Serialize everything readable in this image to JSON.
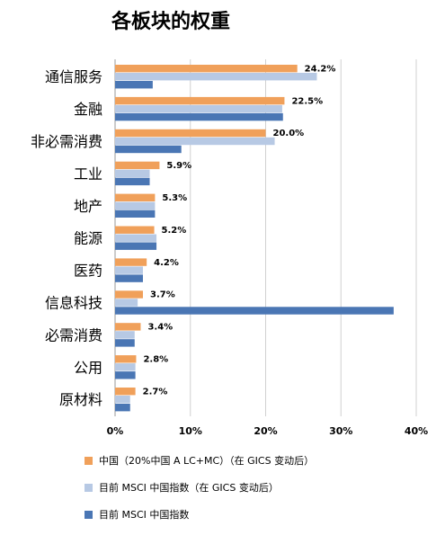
{
  "colors": {
    "series_1": "#f0a05a",
    "series_2": "#b7c9e4",
    "series_3": "#4a76b4",
    "grid": "#d0d0d0",
    "axis": "#999999"
  },
  "chart_data": {
    "type": "bar",
    "orientation": "horizontal",
    "title": "各板块的权重",
    "categories": [
      "通信服务",
      "金融",
      "非必需消费",
      "工业",
      "地产",
      "能源",
      "医药",
      "信息科技",
      "必需消费",
      "公用",
      "原材料"
    ],
    "series": [
      {
        "name": "中国（20%中国 A LC+MC）（在 GICS 变动后）",
        "values": [
          24.2,
          22.5,
          20.0,
          5.9,
          5.3,
          5.2,
          4.2,
          3.7,
          3.4,
          2.8,
          2.7
        ],
        "data_labels": [
          "24.2%",
          "22.5%",
          "20.0%",
          "5.9%",
          "5.3%",
          "5.2%",
          "4.2%",
          "3.7%",
          "3.4%",
          "2.8%",
          "2.7%"
        ]
      },
      {
        "name": "目前 MSCI 中国指数（在 GICS 变动后）",
        "values": [
          26.8,
          22.2,
          21.2,
          4.6,
          5.3,
          5.5,
          3.7,
          3.0,
          2.6,
          2.7,
          2.0
        ]
      },
      {
        "name": "目前 MSCI 中国指数",
        "values": [
          5.0,
          22.3,
          8.8,
          4.6,
          5.3,
          5.5,
          3.7,
          37.0,
          2.6,
          2.7,
          2.0
        ]
      }
    ],
    "xlim": [
      0,
      40
    ],
    "xticks": [
      0,
      10,
      20,
      30,
      40
    ],
    "xtick_labels": [
      "0%",
      "10%",
      "20%",
      "30%",
      "40%"
    ],
    "grid": true,
    "legend_position": "bottom"
  }
}
